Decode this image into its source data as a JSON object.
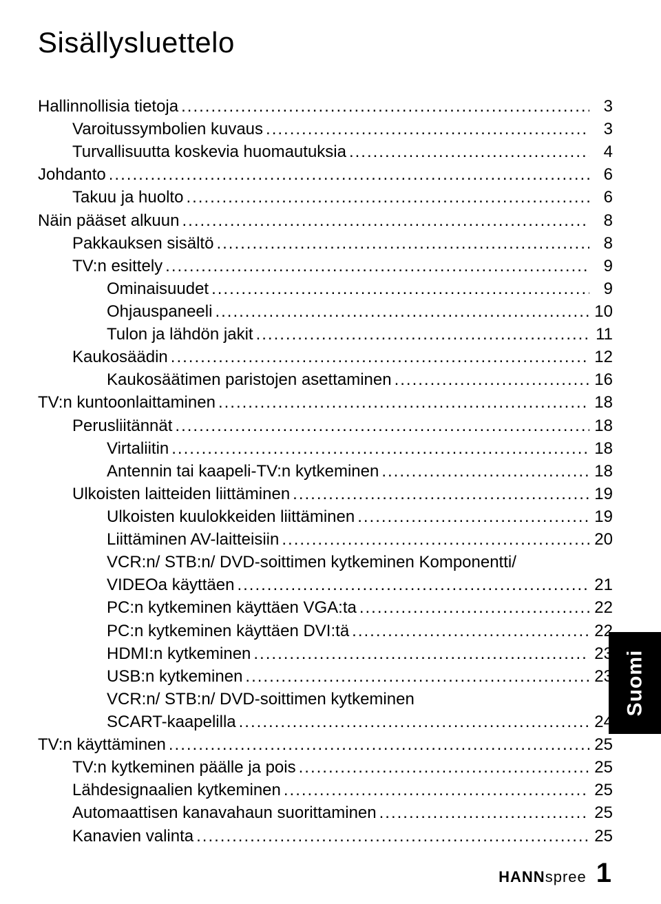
{
  "title": "Sisällysluettelo",
  "side_tab": "Suomi",
  "brand_bold": "HANN",
  "brand_light": "spree",
  "page_number": "1",
  "toc": [
    {
      "level": 1,
      "label": "Hallinnollisia tietoja",
      "page": "3"
    },
    {
      "level": 2,
      "label": "Varoitussymbolien kuvaus",
      "page": "3"
    },
    {
      "level": 2,
      "label": "Turvallisuutta koskevia huomautuksia",
      "page": "4"
    },
    {
      "level": 1,
      "label": "Johdanto",
      "page": "6"
    },
    {
      "level": 2,
      "label": "Takuu ja huolto",
      "page": "6"
    },
    {
      "level": 1,
      "label": "Näin pääset alkuun",
      "page": "8"
    },
    {
      "level": 2,
      "label": "Pakkauksen sisältö",
      "page": "8"
    },
    {
      "level": 2,
      "label": "TV:n esittely",
      "page": "9"
    },
    {
      "level": 3,
      "label": "Ominaisuudet",
      "page": "9"
    },
    {
      "level": 3,
      "label": "Ohjauspaneeli",
      "page": "10"
    },
    {
      "level": 3,
      "label": "Tulon ja lähdön jakit",
      "page": "11"
    },
    {
      "level": 2,
      "label": "Kaukosäädin",
      "page": "12"
    },
    {
      "level": 3,
      "label": "Kaukosäätimen paristojen asettaminen",
      "page": "16"
    },
    {
      "level": 1,
      "label": "TV:n kuntoonlaittaminen",
      "page": "18"
    },
    {
      "level": 2,
      "label": "Perusliitännät",
      "page": "18"
    },
    {
      "level": 3,
      "label": "Virtaliitin",
      "page": "18"
    },
    {
      "level": 3,
      "label": "Antennin tai kaapeli-TV:n kytkeminen",
      "page": "18"
    },
    {
      "level": 2,
      "label": "Ulkoisten laitteiden liittäminen",
      "page": "19"
    },
    {
      "level": 3,
      "label": "Ulkoisten kuulokkeiden liittäminen",
      "page": "19"
    },
    {
      "level": 3,
      "label": "Liittäminen AV-laitteisiin",
      "page": "20"
    },
    {
      "level": 3,
      "multiline": true,
      "label1": "VCR:n/ STB:n/ DVD-soittimen kytkeminen Komponentti/",
      "label2": "VIDEOa käyttäen",
      "page": "21"
    },
    {
      "level": 3,
      "label": "PC:n kytkeminen käyttäen VGA:ta",
      "page": "22"
    },
    {
      "level": 3,
      "label": "PC:n kytkeminen käyttäen DVI:tä",
      "page": "22"
    },
    {
      "level": 3,
      "label": "HDMI:n kytkeminen",
      "page": "23"
    },
    {
      "level": 3,
      "label": "USB:n kytkeminen",
      "page": "23"
    },
    {
      "level": 3,
      "multiline": true,
      "label1": "VCR:n/ STB:n/ DVD-soittimen kytkeminen",
      "label2": "SCART-kaapelilla",
      "page": "24"
    },
    {
      "level": 1,
      "label": "TV:n käyttäminen",
      "page": "25"
    },
    {
      "level": 2,
      "label": "TV:n kytkeminen päälle ja pois",
      "page": "25"
    },
    {
      "level": 2,
      "label": "Lähdesignaalien kytkeminen",
      "page": "25"
    },
    {
      "level": 2,
      "label": "Automaattisen kanavahaun suorittaminen",
      "page": "25"
    },
    {
      "level": 2,
      "label": "Kanavien valinta",
      "page": "25"
    }
  ]
}
